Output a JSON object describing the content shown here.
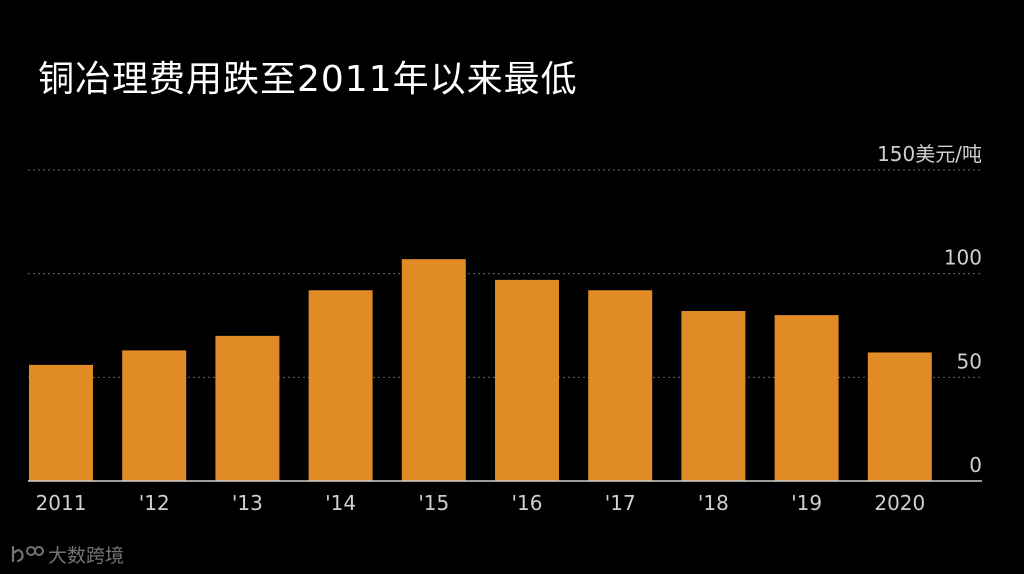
{
  "chart_data": {
    "type": "bar",
    "title": "铜冶理费用跌至2011年以来最低",
    "unit_label": "150美元/吨",
    "categories": [
      "2011",
      "'12",
      "'13",
      "'14",
      "'15",
      "'16",
      "'17",
      "'18",
      "'19",
      "2020"
    ],
    "values": [
      56,
      63,
      70,
      92,
      107,
      97,
      92,
      82,
      80,
      62
    ],
    "ylim": [
      0,
      150
    ],
    "yticks": [
      {
        "value": 150,
        "label": "150美元/吨"
      },
      {
        "value": 100,
        "label": "100"
      },
      {
        "value": 50,
        "label": "50"
      },
      {
        "value": 0,
        "label": "0"
      }
    ],
    "grid": true,
    "bar_color": "#E08B25",
    "grid_color": "#6b6b6b",
    "label_color": "#cfcfcf"
  },
  "watermark": {
    "text": "大数跨境"
  }
}
